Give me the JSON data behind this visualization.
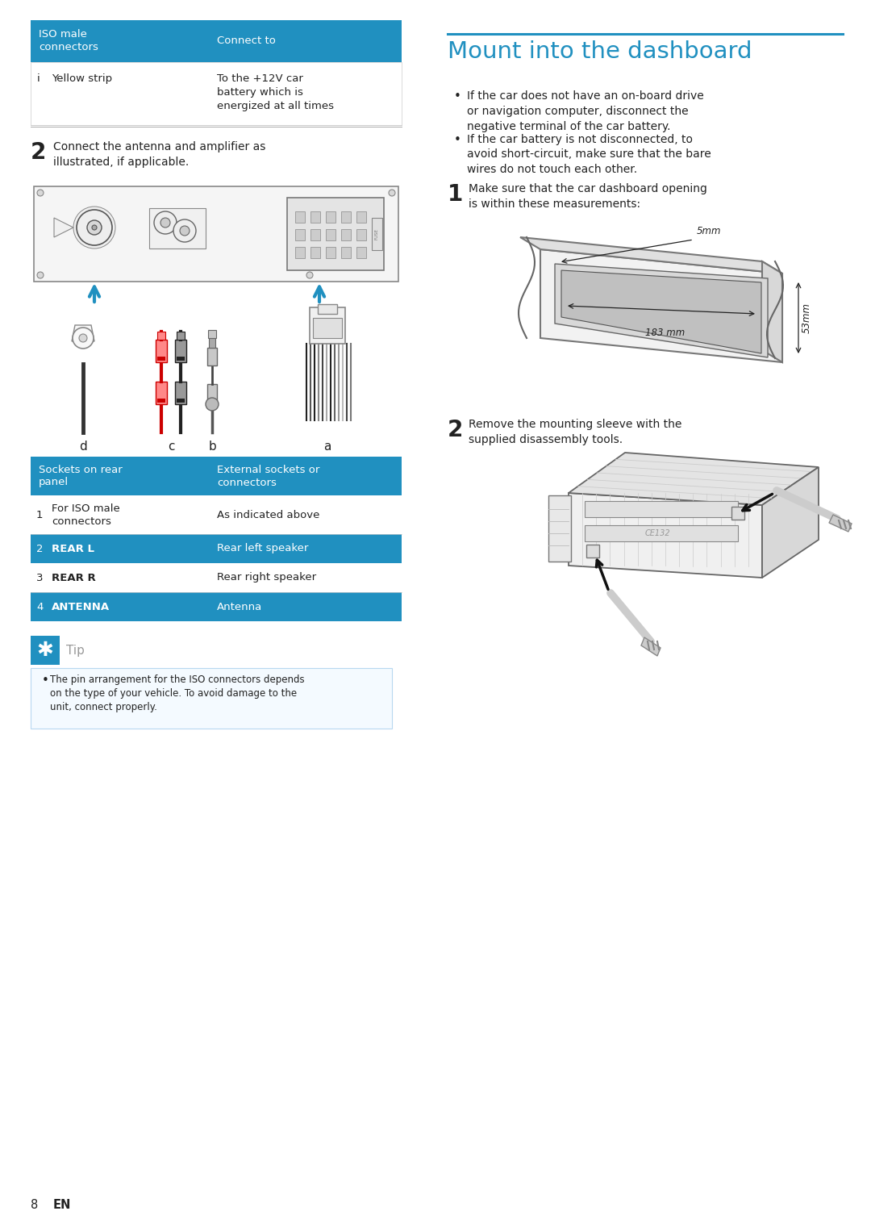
{
  "page_bg": "#ffffff",
  "blue_header": "#2090C0",
  "title": "Mount into the dashboard",
  "title_color": "#2090C0",
  "table1_header": [
    "ISO male\nconnectors",
    "Connect to"
  ],
  "table1_row": [
    "i",
    "Yellow strip",
    "To the +12V car\nbattery which is\nenergized at all times"
  ],
  "step2_left": "Connect the antenna and amplifier as\nillustrated, if applicable.",
  "table2_header": [
    "Sockets on rear\npanel",
    "External sockets or\nconnectors"
  ],
  "table2_rows": [
    {
      "num": "1",
      "socket": "For ISO male\nconnectors",
      "external": "As indicated above",
      "highlight": false
    },
    {
      "num": "2",
      "socket": "REAR L",
      "external": "Rear left speaker",
      "highlight": true
    },
    {
      "num": "3",
      "socket": "REAR R",
      "external": "Rear right speaker",
      "highlight": false
    },
    {
      "num": "4",
      "socket": "ANTENNA",
      "external": "Antenna",
      "highlight": true
    }
  ],
  "tip_text": "The pin arrangement for the ISO connectors depends\non the type of your vehicle. To avoid damage to the\nunit, connect properly.",
  "right_bullets": [
    "If the car does not have an on-board drive\nor navigation computer, disconnect the\nnegative terminal of the car battery.",
    "If the car battery is not disconnected, to\navoid short-circuit, make sure that the bare\nwires do not touch each other."
  ],
  "step1_right": "Make sure that the car dashboard opening\nis within these measurements:",
  "step2_right": "Remove the mounting sleeve with the\nsupplied disassembly tools.",
  "dim_5mm": "5mm",
  "dim_183mm": "183 mm",
  "dim_53mm": "53mm",
  "page_num": "8",
  "page_lang": "EN"
}
